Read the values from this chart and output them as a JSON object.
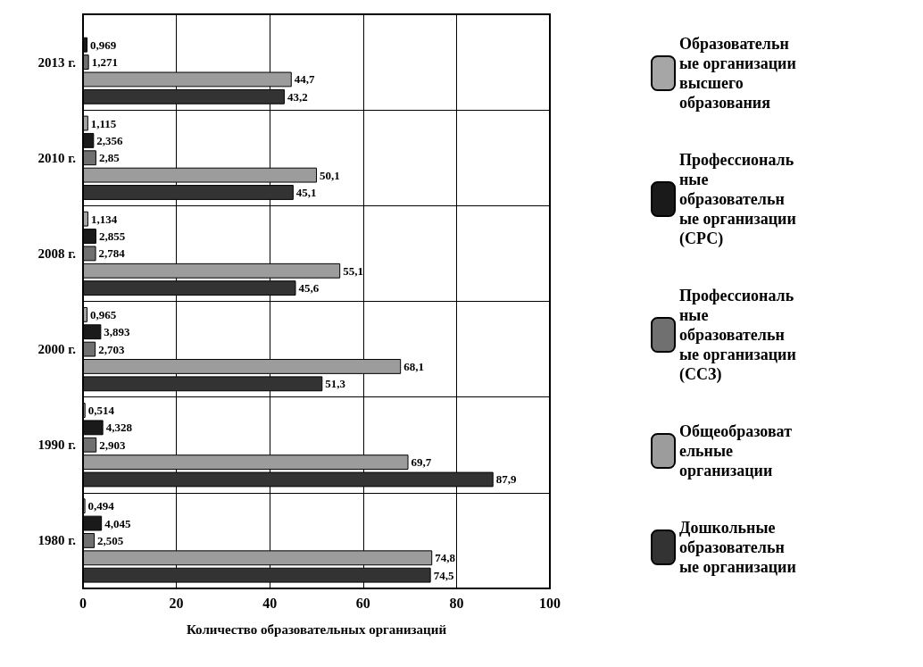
{
  "chart_data": {
    "type": "bar",
    "orientation": "horizontal",
    "xlabel": "Количество образовательных организаций",
    "categories": [
      "2013 г.",
      "2010 г.",
      "2008 г.",
      "2000 г.",
      "1990 г.",
      "1980 г."
    ],
    "xlim": [
      0,
      100
    ],
    "xticks": [
      0,
      20,
      40,
      60,
      80,
      100
    ],
    "grid": true,
    "legend": "right",
    "series": [
      {
        "name": "Образовательные организации высшего образования",
        "color": "#a6a6a6",
        "values": [
          null,
          1.115,
          1.134,
          0.965,
          0.514,
          0.494
        ],
        "value_labels": [
          null,
          "1,115",
          "1,134",
          "0,965",
          "0,514",
          "0,494"
        ]
      },
      {
        "name": "Профессиональные образовательные организации (СРС)",
        "color": "#1a1a1a",
        "values": [
          0.969,
          2.356,
          2.855,
          3.893,
          4.328,
          4.045
        ],
        "value_labels": [
          "0,969",
          "2,356",
          "2,855",
          "3,893",
          "4,328",
          "4,045"
        ]
      },
      {
        "name": "Профессиональные образовательные организации (ССЗ)",
        "color": "#707070",
        "values": [
          1.271,
          2.85,
          2.784,
          2.703,
          2.903,
          2.505
        ],
        "value_labels": [
          "1,271",
          "2,85",
          "2,784",
          "2,703",
          "2,903",
          "2,505"
        ]
      },
      {
        "name": "Общеобразовательные организации",
        "color": "#9c9c9c",
        "values": [
          44.7,
          50.1,
          55.1,
          68.1,
          69.7,
          74.8
        ],
        "value_labels": [
          "44,7",
          "50,1",
          "55,1",
          "68,1",
          "69,7",
          "74,8"
        ]
      },
      {
        "name": "Дошкольные образовательные организации",
        "color": "#333333",
        "values": [
          43.2,
          45.1,
          45.6,
          51.3,
          87.9,
          74.5
        ],
        "value_labels": [
          "43,2",
          "45,1",
          "45,6",
          "51,3",
          "87,9",
          "74,5"
        ]
      }
    ]
  }
}
